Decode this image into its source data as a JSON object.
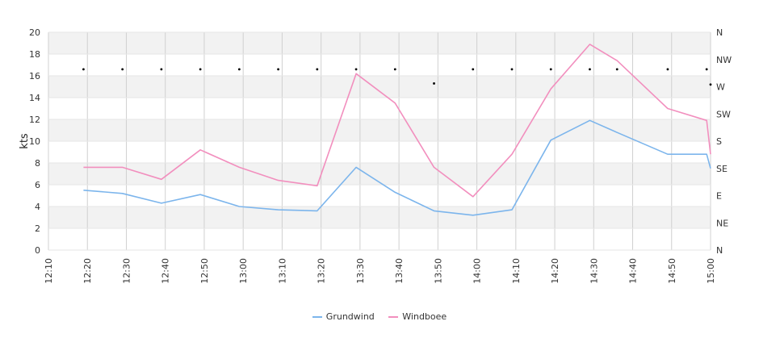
{
  "chart_data": {
    "type": "line",
    "ylabel": "kts",
    "ylim": [
      0,
      20
    ],
    "y_ticks": [
      0,
      2,
      4,
      6,
      8,
      10,
      12,
      14,
      16,
      18,
      20
    ],
    "x_ticks": [
      "12:10",
      "12:20",
      "12:30",
      "12:40",
      "12:50",
      "13:00",
      "13:10",
      "13:20",
      "13:30",
      "13:40",
      "13:50",
      "14:00",
      "14:10",
      "14:20",
      "14:30",
      "14:40",
      "14:50",
      "15:00"
    ],
    "x_range_minutes": [
      "12:10",
      "15:00"
    ],
    "direction_axis_labels": [
      "N",
      "NE",
      "E",
      "SE",
      "S",
      "SW",
      "W",
      "NW",
      "N"
    ],
    "grid": true,
    "legend_position": "bottom",
    "series": [
      {
        "name": "Grundwind",
        "color": "#7cb5ec",
        "x": [
          "12:19",
          "12:29",
          "12:39",
          "12:49",
          "12:59",
          "13:09",
          "13:19",
          "13:29",
          "13:39",
          "13:49",
          "13:59",
          "14:09",
          "14:19",
          "14:29",
          "14:36",
          "14:49",
          "14:59",
          "15:00"
        ],
        "y": [
          5.5,
          5.2,
          4.3,
          5.1,
          4.0,
          3.7,
          3.6,
          7.6,
          5.3,
          3.6,
          3.2,
          3.7,
          10.1,
          11.9,
          10.8,
          8.8,
          8.8,
          7.5
        ]
      },
      {
        "name": "Windboee",
        "color": "#f28fbe",
        "x": [
          "12:19",
          "12:29",
          "12:39",
          "12:49",
          "12:59",
          "13:09",
          "13:19",
          "13:29",
          "13:39",
          "13:49",
          "13:59",
          "14:09",
          "14:19",
          "14:29",
          "14:36",
          "14:49",
          "14:59",
          "15:00"
        ],
        "y": [
          7.6,
          7.6,
          6.5,
          9.2,
          7.6,
          6.4,
          5.9,
          16.2,
          13.5,
          7.6,
          4.9,
          8.8,
          14.8,
          18.9,
          17.4,
          13.0,
          11.9,
          8.8
        ]
      },
      {
        "name": "",
        "color": "#000000",
        "marker_only": true,
        "x": [
          "12:19",
          "12:29",
          "12:39",
          "12:49",
          "12:59",
          "13:09",
          "13:19",
          "13:29",
          "13:39",
          "13:49",
          "13:59",
          "14:09",
          "14:19",
          "14:29",
          "14:36",
          "14:49",
          "14:59",
          "15:00"
        ],
        "y": [
          16.6,
          16.6,
          16.6,
          16.6,
          16.6,
          16.6,
          16.6,
          16.6,
          16.6,
          15.3,
          16.6,
          16.6,
          16.6,
          16.6,
          16.6,
          16.6,
          16.6,
          15.2
        ]
      }
    ]
  }
}
